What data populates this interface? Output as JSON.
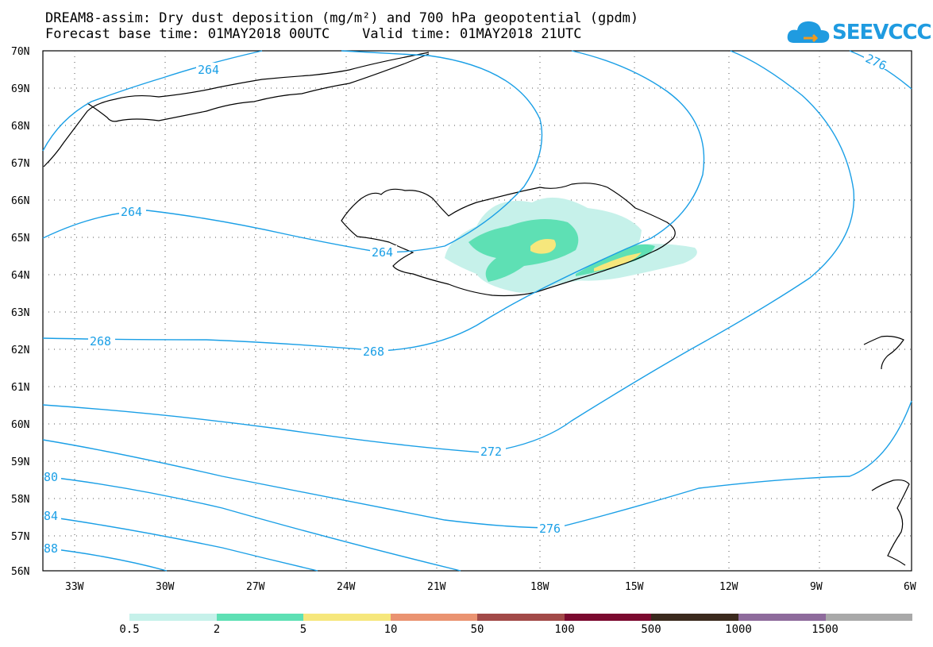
{
  "header": {
    "title_line1": "DREAM8-assim: Dry dust deposition (mg/m²) and 700 hPa geopotential (gpdm)",
    "title_line2": "Forecast base time: 01MAY2018 00UTC    Valid time: 01MAY2018 21UTC"
  },
  "logo": {
    "text": "SEEVCCC",
    "icon": "cloud-icon",
    "color": "#1f9be0"
  },
  "map": {
    "lat_labels": [
      "70N",
      "69N",
      "68N",
      "67N",
      "66N",
      "65N",
      "64N",
      "63N",
      "62N",
      "61N",
      "60N",
      "59N",
      "58N",
      "57N",
      "56N"
    ],
    "lon_labels": [
      "33W",
      "30W",
      "27W",
      "24W",
      "21W",
      "18W",
      "15W",
      "12W",
      "9W",
      "6W"
    ],
    "contour_color": "#1a9fe6",
    "contour_labels": [
      "264",
      "264",
      "264",
      "268",
      "268",
      "272",
      "276",
      "276",
      "80",
      "84",
      "88"
    ]
  },
  "legend": {
    "colors": [
      "#c6f1ea",
      "#5ee0b4",
      "#f6e77c",
      "#ea9371",
      "#a24a48",
      "#7b0a2f",
      "#3b2a1e",
      "#8e6b9c",
      "#a9a9a9"
    ],
    "labels": [
      "0.5",
      "2",
      "5",
      "10",
      "50",
      "100",
      "500",
      "1000",
      "1500"
    ]
  }
}
